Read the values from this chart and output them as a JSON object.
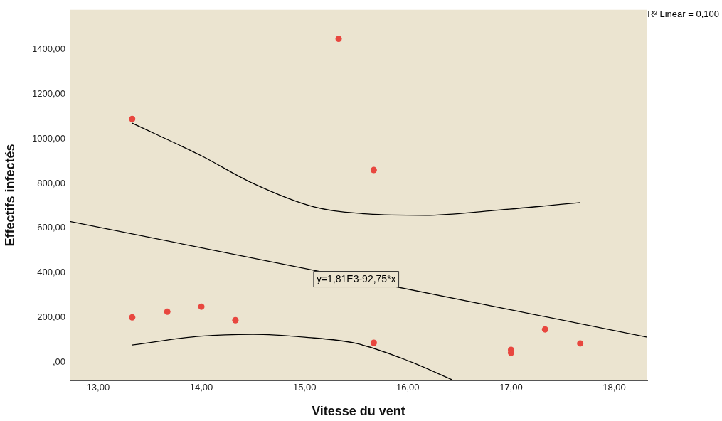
{
  "chart_data": {
    "type": "scatter",
    "xlabel": "Vitesse du vent",
    "ylabel": "Effectifs infectés",
    "xlim": [
      12.725,
      18.32
    ],
    "ylim": [
      -83,
      1578
    ],
    "xticks": [
      {
        "value": 13,
        "label": "13,00"
      },
      {
        "value": 14,
        "label": "14,00"
      },
      {
        "value": 15,
        "label": "15,00"
      },
      {
        "value": 16,
        "label": "16,00"
      },
      {
        "value": 17,
        "label": "17,00"
      },
      {
        "value": 18,
        "label": "18,00"
      }
    ],
    "yticks": [
      {
        "value": 0,
        "label": ",00"
      },
      {
        "value": 200,
        "label": "200,00"
      },
      {
        "value": 400,
        "label": "400,00"
      },
      {
        "value": 600,
        "label": "600,00"
      },
      {
        "value": 800,
        "label": "800,00"
      },
      {
        "value": 1000,
        "label": "1000,00"
      },
      {
        "value": 1200,
        "label": "1200,00"
      },
      {
        "value": 1400,
        "label": "1400,00"
      }
    ],
    "grid": false,
    "legend": false,
    "series": [
      {
        "type": "scatter",
        "marker": "circle",
        "color": "#e8473f",
        "x": [
          13.33,
          13.33,
          13.67,
          14.0,
          14.33,
          15.33,
          15.67,
          15.67,
          17.0,
          17.0,
          17.33,
          17.67
        ],
        "values": [
          1089,
          200,
          225,
          248,
          187,
          1448,
          860,
          86,
          54,
          41,
          146,
          83
        ]
      },
      {
        "type": "line",
        "marker": "none",
        "color": "#000000",
        "x": [
          12.725,
          18.32
        ],
        "values": [
          630,
          111
        ]
      },
      {
        "type": "line",
        "marker": "none",
        "color": "#000000",
        "x": [
          13.33,
          14.0,
          14.5,
          15.09,
          15.61,
          16.17,
          16.84,
          17.67
        ],
        "values": [
          1070,
          924,
          800,
          695,
          663,
          657,
          679,
          714
        ]
      },
      {
        "type": "line",
        "marker": "none",
        "color": "#000000",
        "x": [
          13.33,
          14.0,
          14.5,
          15.0,
          15.5,
          16.0,
          16.43
        ],
        "values": [
          76,
          116,
          124,
          111,
          83,
          6,
          -80
        ]
      }
    ],
    "annotations": [
      {
        "text": "y=1,81E3-92,75*x",
        "x": 15.5,
        "y": 371
      },
      "R² Linear = 0,100"
    ]
  }
}
